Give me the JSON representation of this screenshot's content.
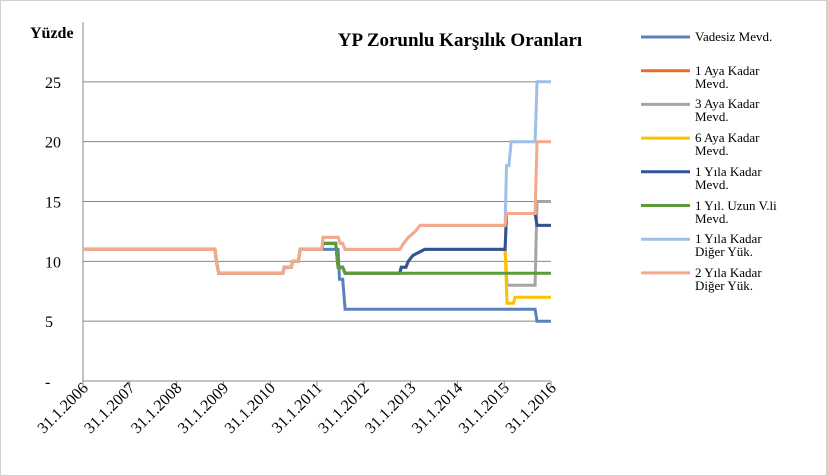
{
  "chart_data": {
    "type": "line",
    "title": "YP Zorunlu Karşılık Oranları",
    "y_label": "Yüzde",
    "xlim": [
      2006,
      2016
    ],
    "ylim": [
      0,
      30
    ],
    "xticks": [
      {
        "value": 2006,
        "label": "31.1.2006"
      },
      {
        "value": 2007,
        "label": "31.1.2007"
      },
      {
        "value": 2008,
        "label": "31.1.2008"
      },
      {
        "value": 2009,
        "label": "31.1.2009"
      },
      {
        "value": 2010,
        "label": "31.1.2010"
      },
      {
        "value": 2011,
        "label": "31.1.2011"
      },
      {
        "value": 2012,
        "label": "31.1.2012"
      },
      {
        "value": 2013,
        "label": "31.1.2013"
      },
      {
        "value": 2014,
        "label": "31.1.2014"
      },
      {
        "value": 2015,
        "label": "31.1.2015"
      },
      {
        "value": 2016,
        "label": "31.1.2016"
      }
    ],
    "yticks": [
      {
        "value": 0,
        "label": "-"
      },
      5,
      10,
      15,
      20,
      25
    ],
    "grid": true,
    "legend": "right",
    "series": [
      {
        "name": "Vadesiz Mevd.",
        "color": "#5b80c0",
        "x": [
          2006,
          2008.82,
          2008.85,
          2008.9,
          2010.27,
          2010.3,
          2010.45,
          2010.48,
          2010.6,
          2010.64,
          2011.45,
          2011.48,
          2011.55,
          2011.6,
          2015.66,
          2015.7,
          2016
        ],
        "values": [
          11,
          11,
          10,
          9,
          9,
          9.5,
          9.5,
          10,
          10,
          11,
          11,
          8.5,
          8.5,
          6,
          6,
          5,
          5
        ]
      },
      {
        "name": "1 Aya Kadar Mevd.",
        "color": "#e0702c",
        "x": [
          2006,
          2008.82,
          2008.85,
          2008.9,
          2010.27,
          2010.3,
          2010.45,
          2010.48,
          2010.6,
          2010.64,
          2011.1,
          2011.13,
          2011.4,
          2011.45,
          2011.55,
          2011.6,
          2012.77,
          2012.8,
          2012.9,
          2012.95,
          2013.05,
          2013.3,
          2015.02,
          2015.05,
          2015.66,
          2015.7,
          2016
        ],
        "values": [
          11,
          11,
          10,
          9,
          9,
          9.5,
          9.5,
          10,
          10,
          11,
          11,
          11.5,
          11.5,
          9.5,
          9.5,
          9,
          9,
          9.5,
          9.5,
          10,
          10.5,
          11,
          11,
          14,
          14,
          13,
          13
        ]
      },
      {
        "name": "3 Aya Kadar Mevd.",
        "color": "#a5a5a5",
        "x": [
          2006,
          2008.82,
          2008.85,
          2008.9,
          2010.27,
          2010.3,
          2010.45,
          2010.48,
          2010.6,
          2010.64,
          2011.1,
          2011.13,
          2011.4,
          2011.45,
          2011.55,
          2011.6,
          2012.77,
          2012.8,
          2012.9,
          2012.95,
          2013.05,
          2013.3,
          2015.02,
          2015.06,
          2015.66,
          2015.7,
          2016
        ],
        "values": [
          11,
          11,
          10,
          9,
          9,
          9.5,
          9.5,
          10,
          10,
          11,
          11,
          11.5,
          11.5,
          9.5,
          9.5,
          9,
          9,
          9.5,
          9.5,
          10,
          10.5,
          11,
          11,
          8,
          8,
          15,
          15
        ]
      },
      {
        "name": "6 Aya Kadar Mevd.",
        "color": "#ffc000",
        "x": [
          2006,
          2008.82,
          2008.85,
          2008.9,
          2010.27,
          2010.3,
          2010.45,
          2010.48,
          2010.6,
          2010.64,
          2011.1,
          2011.13,
          2011.4,
          2011.45,
          2011.55,
          2011.6,
          2012.77,
          2012.8,
          2012.9,
          2012.95,
          2013.05,
          2013.3,
          2015.02,
          2015.06,
          2015.2,
          2015.23,
          2016
        ],
        "values": [
          11,
          11,
          10,
          9,
          9,
          9.5,
          9.5,
          10,
          10,
          11,
          11,
          11.5,
          11.5,
          9.5,
          9.5,
          9,
          9,
          9.5,
          9.5,
          10,
          10.5,
          11,
          11,
          6.5,
          6.5,
          7,
          7
        ]
      },
      {
        "name": "1 Yıla Kadar Mevd.",
        "color": "#2f5597",
        "x": [
          2006,
          2008.82,
          2008.85,
          2008.9,
          2010.27,
          2010.3,
          2010.45,
          2010.48,
          2010.6,
          2010.64,
          2011.1,
          2011.13,
          2011.4,
          2011.45,
          2011.55,
          2011.6,
          2012.77,
          2012.8,
          2012.9,
          2012.95,
          2013.05,
          2013.3,
          2015.02,
          2015.05,
          2015.66,
          2015.7,
          2016
        ],
        "values": [
          11,
          11,
          10,
          9,
          9,
          9.5,
          9.5,
          10,
          10,
          11,
          11,
          11.5,
          11.5,
          9.5,
          9.5,
          9,
          9,
          9.5,
          9.5,
          10,
          10.5,
          11,
          11,
          14,
          14,
          13,
          13
        ]
      },
      {
        "name": "1 Yıl. Uzun V.li Mevd.",
        "color": "#5b9b3a",
        "x": [
          2006,
          2008.82,
          2008.85,
          2008.9,
          2010.27,
          2010.3,
          2010.45,
          2010.48,
          2010.6,
          2010.64,
          2011.1,
          2011.13,
          2011.4,
          2011.45,
          2011.55,
          2011.6,
          2016
        ],
        "values": [
          11,
          11,
          10,
          9,
          9,
          9.5,
          9.5,
          10,
          10,
          11,
          11,
          11.5,
          11.5,
          9.5,
          9.5,
          9,
          9
        ]
      },
      {
        "name": "1 Yıla Kadar Diğer Yük.",
        "color": "#9dc0e8",
        "x": [
          2006,
          2008.82,
          2008.85,
          2008.9,
          2010.27,
          2010.3,
          2010.45,
          2010.48,
          2010.6,
          2010.64,
          2011.1,
          2011.13,
          2011.45,
          2011.5,
          2011.55,
          2011.6,
          2012.77,
          2012.85,
          2012.95,
          2013.1,
          2013.2,
          2015.02,
          2015.05,
          2015.1,
          2015.15,
          2015.66,
          2015.7,
          2016
        ],
        "values": [
          11,
          11,
          10,
          9,
          9,
          9.5,
          9.5,
          10,
          10,
          11,
          11,
          12,
          12,
          11.5,
          11.5,
          11,
          11,
          11.5,
          12,
          12.5,
          13,
          13,
          18,
          18,
          20,
          20,
          25,
          25
        ]
      },
      {
        "name": "2 Yıla Kadar Diğer Yük.",
        "color": "#f4a98a",
        "x": [
          2006,
          2008.82,
          2008.85,
          2008.9,
          2010.27,
          2010.3,
          2010.45,
          2010.48,
          2010.6,
          2010.64,
          2011.1,
          2011.13,
          2011.45,
          2011.5,
          2011.55,
          2011.6,
          2012.77,
          2012.85,
          2012.95,
          2013.1,
          2013.2,
          2015.02,
          2015.05,
          2015.66,
          2015.7,
          2016
        ],
        "values": [
          11,
          11,
          10,
          9,
          9,
          9.5,
          9.5,
          10,
          10,
          11,
          11,
          12,
          12,
          11.5,
          11.5,
          11,
          11,
          11.5,
          12,
          12.5,
          13,
          13,
          14,
          14,
          20,
          20
        ]
      }
    ]
  }
}
